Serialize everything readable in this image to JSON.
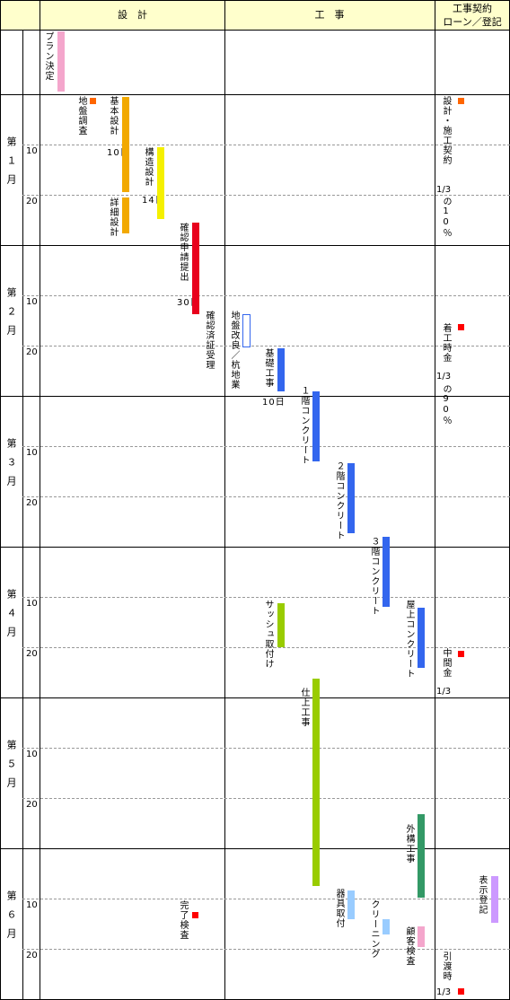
{
  "header": {
    "design": "設　計",
    "construction": "工　事",
    "loan_line1": "工事契約",
    "loan_line2": "ローン／登記"
  },
  "plan_row": {
    "label": "プラン決定"
  },
  "months": [
    "第１月",
    "第２月",
    "第３月",
    "第４月",
    "第５月",
    "第６月"
  ],
  "day_marks": [
    "10",
    "20"
  ],
  "design": {
    "ground_survey": "地盤調査",
    "basic_design": "基本設計",
    "basic_design_days": "10日",
    "detailed_design": "詳細設計",
    "structural_design": "構造設計",
    "structural_design_days": "14日",
    "confirmation_application": "確認申請提出",
    "confirmation_application_days": "30日",
    "confirmation_received": "確認済証受理",
    "completion_inspection": "完了検査"
  },
  "construction": {
    "ground_improvement": "地盤改良／杭地業",
    "foundation": "基礎工事",
    "foundation_days": "10日",
    "concrete_1f": "１階コンクリート",
    "concrete_2f": "２階コンクリート",
    "concrete_3f": "３階コンクリート",
    "roof_concrete": "屋上コンクリート",
    "sash": "サッシュ取付け",
    "finishing": "仕上工事",
    "exterior": "外構工事",
    "fixtures": "器具取付",
    "cleaning": "クリーニング",
    "customer_inspection": "顧客検査"
  },
  "loan": {
    "contract": "設計・施工契約",
    "contract_ratio": "1/3",
    "contract_pct": "の10％",
    "start_payment": "着工時金",
    "start_ratio": "1/3",
    "start_pct": "の90％",
    "interim": "中間金",
    "interim_ratio": "1/3",
    "display_registration": "表示登記",
    "handover": "引渡時",
    "handover_ratio": "1/3"
  },
  "colors": {
    "header_bg": "#ffffcc",
    "pink": "#f4a6cc",
    "orange": "#f2a900",
    "yellow": "#f5f000",
    "red": "#e8001c",
    "blue": "#3366ee",
    "green": "#99cc00",
    "lightblue": "#99ccff",
    "teal": "#339966",
    "purple": "#cc99ff",
    "mark_orange": "#ff6600",
    "mark_red": "#ff0000"
  }
}
